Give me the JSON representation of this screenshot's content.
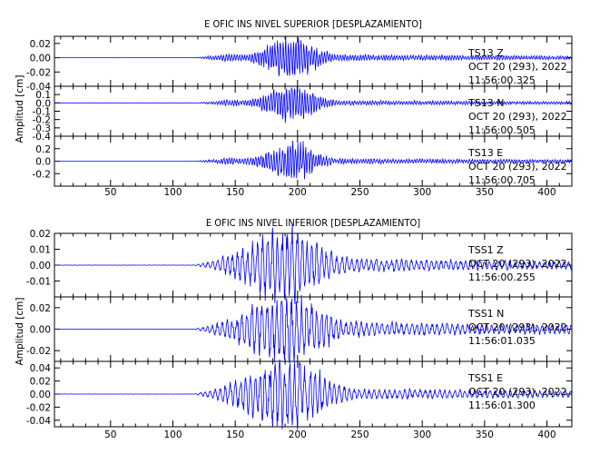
{
  "chart_data": [
    {
      "type": "line",
      "title": "E OFIC INS NIVEL SUPERIOR [DESPLAZAMIENTO]",
      "ylabel": "Amplitud [cm]",
      "xlim": [
        5,
        420
      ],
      "xticks": [
        50,
        100,
        150,
        200,
        250,
        300,
        350,
        400
      ],
      "line_color": "#0000ff",
      "panels": [
        {
          "station": "TS13",
          "component": "Z",
          "date": "OCT 20 (293), 2022",
          "time": "11:56:00.325",
          "ylim": [
            -0.04,
            0.03
          ],
          "yticks": [
            -0.04,
            -0.02,
            0.0,
            0.02
          ],
          "ytick_labels": [
            "-0.04",
            "-0.02",
            "0.00",
            "0.02"
          ],
          "onset": 118,
          "peak_time": 195,
          "peak_amplitude": 0.026,
          "coda_level": 0.003
        },
        {
          "station": "TS13",
          "component": "N",
          "date": "OCT 20 (293), 2022",
          "time": "11:56:00.505",
          "ylim": [
            -0.4,
            0.2
          ],
          "yticks": [
            -0.4,
            -0.3,
            -0.2,
            -0.1,
            0.0,
            0.1
          ],
          "ytick_labels": [
            "-0.4",
            "-0.3",
            "-0.2",
            "-0.1",
            "0.0",
            "0.1"
          ],
          "onset": 118,
          "peak_time": 195,
          "peak_amplitude": 0.2,
          "coda_level": 0.02
        },
        {
          "station": "TS13",
          "component": "E",
          "date": "OCT 20 (293), 2022",
          "time": "11:56:00.705",
          "ylim": [
            -0.4,
            0.4
          ],
          "yticks": [
            -0.2,
            0.0,
            0.2
          ],
          "ytick_labels": [
            "-0.2",
            "0.0",
            "0.2"
          ],
          "onset": 118,
          "peak_time": 195,
          "peak_amplitude": 0.25,
          "coda_level": 0.03
        }
      ]
    },
    {
      "type": "line",
      "title": "E OFIC INS NIVEL INFERIOR [DESPLAZAMIENTO]",
      "ylabel": "Amplitud [cm]",
      "xlim": [
        5,
        420
      ],
      "xticks": [
        50,
        100,
        150,
        200,
        250,
        300,
        350,
        400
      ],
      "line_color": "#0000ff",
      "panels": [
        {
          "station": "TSS1",
          "component": "Z",
          "date": "OCT 20 (293), 2022",
          "time": "11:56:00.255",
          "ylim": [
            -0.02,
            0.02
          ],
          "yticks": [
            -0.01,
            0.0,
            0.01,
            0.02
          ],
          "ytick_labels": [
            "-0.01",
            "0.00",
            "0.01",
            "0.02"
          ],
          "onset": 118,
          "peak_time": 190,
          "peak_amplitude": 0.018,
          "coda_level": 0.003
        },
        {
          "station": "TSS1",
          "component": "N",
          "date": "OCT 20 (293), 2022",
          "time": "11:56:01.035",
          "ylim": [
            -0.03,
            0.03
          ],
          "yticks": [
            -0.02,
            0.0,
            0.02
          ],
          "ytick_labels": [
            "-0.02",
            "0.00",
            "0.02"
          ],
          "onset": 118,
          "peak_time": 190,
          "peak_amplitude": 0.025,
          "coda_level": 0.005
        },
        {
          "station": "TSS1",
          "component": "E",
          "date": "OCT 20 (293), 2022",
          "time": "11:56:01.300",
          "ylim": [
            -0.05,
            0.05
          ],
          "yticks": [
            -0.04,
            -0.02,
            0.0,
            0.02,
            0.04
          ],
          "ytick_labels": [
            "-0.04",
            "-0.02",
            "0.00",
            "0.02",
            "0.04"
          ],
          "onset": 118,
          "peak_time": 190,
          "peak_amplitude": 0.045,
          "coda_level": 0.006
        }
      ]
    }
  ]
}
